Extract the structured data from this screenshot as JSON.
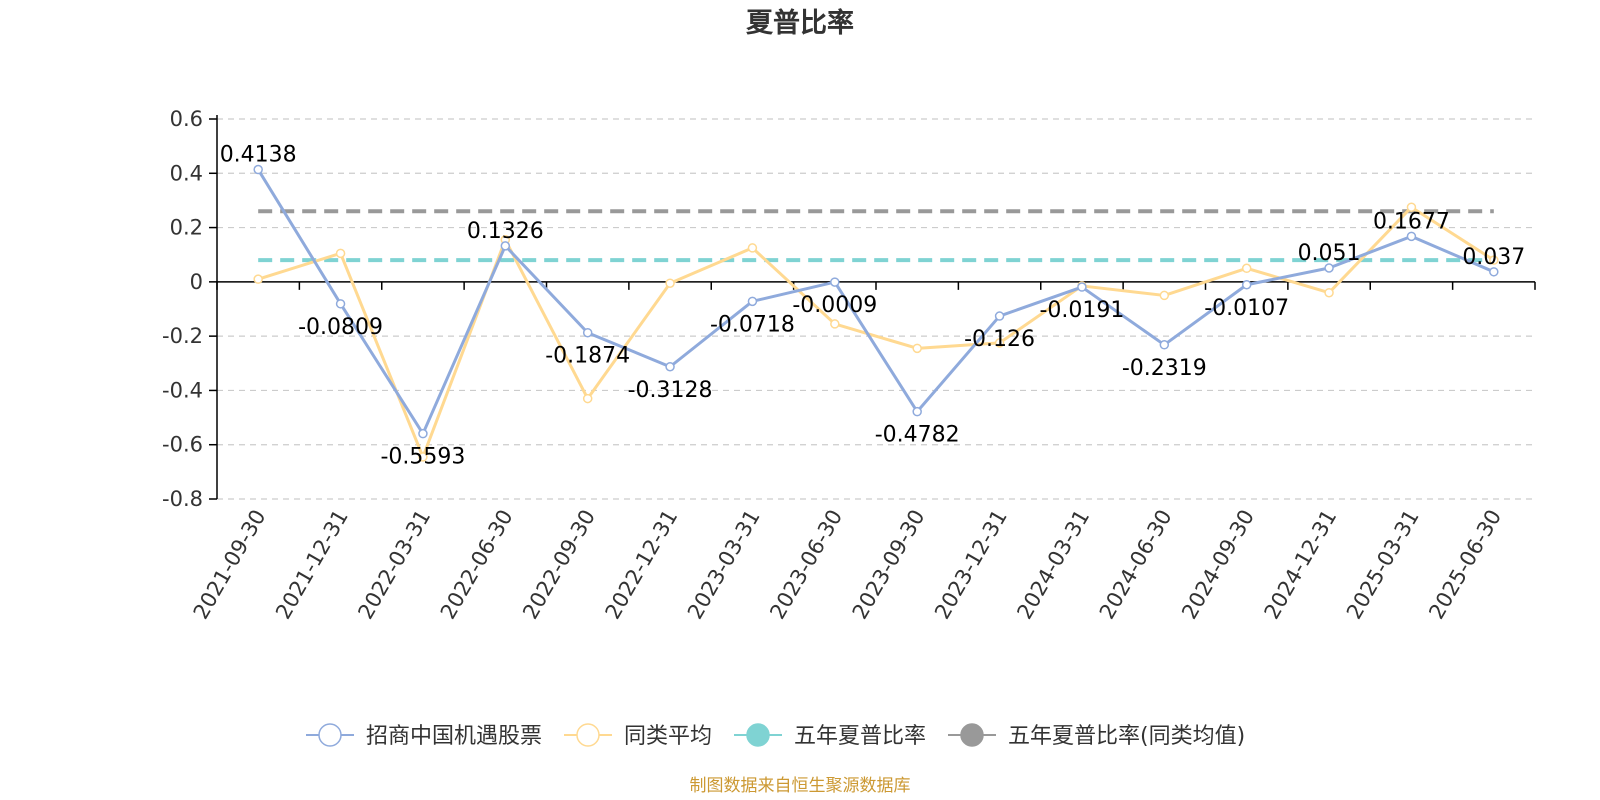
{
  "chart_data": {
    "type": "line",
    "title": "夏普比率",
    "categories": [
      "2021-09-30",
      "2021-12-31",
      "2022-03-31",
      "2022-06-30",
      "2022-09-30",
      "2022-12-31",
      "2023-03-31",
      "2023-06-30",
      "2023-09-30",
      "2023-12-31",
      "2024-03-31",
      "2024-06-30",
      "2024-09-30",
      "2024-12-31",
      "2025-03-31",
      "2025-06-30"
    ],
    "ylim": [
      -0.8,
      0.6
    ],
    "yticks": [
      0.6,
      0.4,
      0.2,
      0,
      -0.2,
      -0.4,
      -0.6,
      -0.8
    ],
    "ytick_labels": [
      "0.6",
      "0.4",
      "0.2",
      "0",
      "-0.2",
      "-0.4",
      "-0.6",
      "-0.8"
    ],
    "grid": true,
    "series": [
      {
        "name": "招商中国机遇股票",
        "color": "#8faadc",
        "values": [
          0.4138,
          -0.0809,
          -0.5593,
          0.1326,
          -0.1874,
          -0.3128,
          -0.0718,
          -0.0009,
          -0.4782,
          -0.126,
          -0.0191,
          -0.2319,
          -0.0107,
          0.051,
          0.1677,
          0.037
        ],
        "labels": [
          "0.4138",
          "-0.0809",
          "-0.5593",
          "0.1326",
          "-0.1874",
          "-0.3128",
          "-0.0718",
          "-0.0009",
          "-0.4782",
          "-0.126",
          "-0.0191",
          "-0.2319",
          "-0.0107",
          "0.051",
          "0.1677",
          "0.037"
        ]
      },
      {
        "name": "同类平均",
        "color": "#ffd991",
        "values": [
          0.01,
          0.105,
          -0.645,
          0.155,
          -0.43,
          -0.005,
          0.125,
          -0.155,
          -0.245,
          -0.225,
          -0.015,
          -0.05,
          0.05,
          -0.04,
          0.275,
          0.08
        ]
      }
    ],
    "reference_lines": [
      {
        "name": "五年夏普比率",
        "value": 0.08,
        "color": "#7fd3d3"
      },
      {
        "name": "五年夏普比率(同类均值)",
        "value": 0.26,
        "color": "#999999"
      }
    ],
    "legend_position": "bottom",
    "source": "制图数据来自恒生聚源数据库",
    "source_color": "#cc9933"
  }
}
